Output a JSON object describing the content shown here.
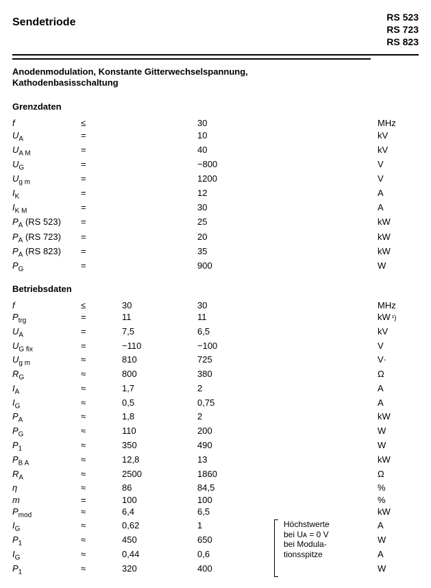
{
  "title": "Sendetriode",
  "models": [
    "RS 523",
    "RS 723",
    "RS 823"
  ],
  "subtitle1": "Anodenmodulation, Konstante Gitterwechselspannung,",
  "subtitle2": "Kathodenbasisschaltung",
  "grenz_title": "Grenzdaten",
  "betrieb_title": "Betriebsdaten",
  "grenz": [
    {
      "sym": "f",
      "op": "≤",
      "v": "30",
      "u": "MHz"
    },
    {
      "sym": "U",
      "sub": "A",
      "op": "=",
      "v": "10",
      "u": "kV"
    },
    {
      "sym": "U",
      "sub": "A M",
      "op": "=",
      "v": "40",
      "u": "kV"
    },
    {
      "sym": "U",
      "sub": "G",
      "op": "=",
      "v": "−800",
      "u": "V"
    },
    {
      "sym": "U",
      "sub": "g m",
      "op": "=",
      "v": "1200",
      "u": "V"
    },
    {
      "sym": "I",
      "sub": "K",
      "op": "=",
      "v": "12",
      "u": "A"
    },
    {
      "sym": "I",
      "sub": "K M",
      "op": "=",
      "v": "30",
      "u": "A"
    },
    {
      "sym": "P",
      "sub": "A",
      "extra": " (RS 523)",
      "op": "=",
      "v": "25",
      "u": "kW"
    },
    {
      "sym": "P",
      "sub": "A",
      "extra": " (RS 723)",
      "op": "=",
      "v": "20",
      "u": "kW"
    },
    {
      "sym": "P",
      "sub": "A",
      "extra": " (RS 823)",
      "op": "=",
      "v": "35",
      "u": "kW"
    },
    {
      "sym": "P",
      "sub": "G",
      "op": "=",
      "v": "900",
      "u": "W"
    }
  ],
  "betrieb": [
    {
      "sym": "f",
      "op": "≤",
      "v1": "30",
      "v2": "30",
      "u": "MHz"
    },
    {
      "sym": "P",
      "sub": "trg",
      "op": "=",
      "v1": "11",
      "v2": "11",
      "u": "kW",
      "fn": "¹)"
    },
    {
      "sym": "U",
      "sub": "A",
      "op": "=",
      "v1": "7,5",
      "v2": "6,5",
      "u": "kV"
    },
    {
      "sym": "U",
      "sub": "G fix",
      "op": "=",
      "v1": "−110",
      "v2": "−100",
      "u": "V"
    },
    {
      "sym": "U",
      "sub": "g m",
      "op": "≈",
      "v1": "810",
      "v2": "725",
      "u": "V·"
    },
    {
      "sym": "R",
      "sub": "G",
      "op": "≈",
      "v1": "800",
      "v2": "380",
      "u": "Ω"
    },
    {
      "sym": "I",
      "sub": "A",
      "op": "≈",
      "v1": "1,7",
      "v2": "2",
      "u": "A"
    },
    {
      "sym": "I",
      "sub": "G",
      "op": "≈",
      "v1": "0,5",
      "v2": "0,75",
      "u": "A"
    },
    {
      "sym": "P",
      "sub": "A",
      "op": "≈",
      "v1": "1,8",
      "v2": "2",
      "u": "kW"
    },
    {
      "sym": "P",
      "sub": "G",
      "op": "≈",
      "v1": "110",
      "v2": "200",
      "u": "W"
    },
    {
      "sym": "P",
      "sub": "1",
      "op": "≈",
      "v1": "350",
      "v2": "490",
      "u": "W"
    },
    {
      "sym": "P",
      "sub": "B A",
      "op": "≈",
      "v1": "12,8",
      "v2": "13",
      "u": "kW"
    },
    {
      "sym": "R",
      "sub": "A",
      "op": "≈",
      "v1": "2500",
      "v2": "1860",
      "u": "Ω"
    },
    {
      "sym": "η",
      "op": "≈",
      "v1": "86",
      "v2": "84,5",
      "u": "%"
    },
    {
      "sym": "m",
      "op": "=",
      "v1": "100",
      "v2": "100",
      "u": "%"
    },
    {
      "sym": "P",
      "sub": "mod",
      "op": "≈",
      "v1": "6,4",
      "v2": "6,5",
      "u": "kW"
    }
  ],
  "betrieb_note_rows": [
    {
      "sym": "I",
      "sub": "G",
      "op": "≈",
      "v1": "0,62",
      "v2": "1",
      "u": "A"
    },
    {
      "sym": "P",
      "sub": "1",
      "op": "≈",
      "v1": "450",
      "v2": "650",
      "u": "W"
    },
    {
      "sym": "I",
      "sub": "G",
      "op": "≈",
      "v1": "0,44",
      "v2": "0,6",
      "u": "A"
    },
    {
      "sym": "P",
      "sub": "1",
      "op": "≈",
      "v1": "320",
      "v2": "400",
      "u": "W"
    }
  ],
  "note_lines": [
    "Höchstwerte",
    "bei Uᴀ = 0 V",
    "bei Modula-",
    "tionsspitze"
  ]
}
